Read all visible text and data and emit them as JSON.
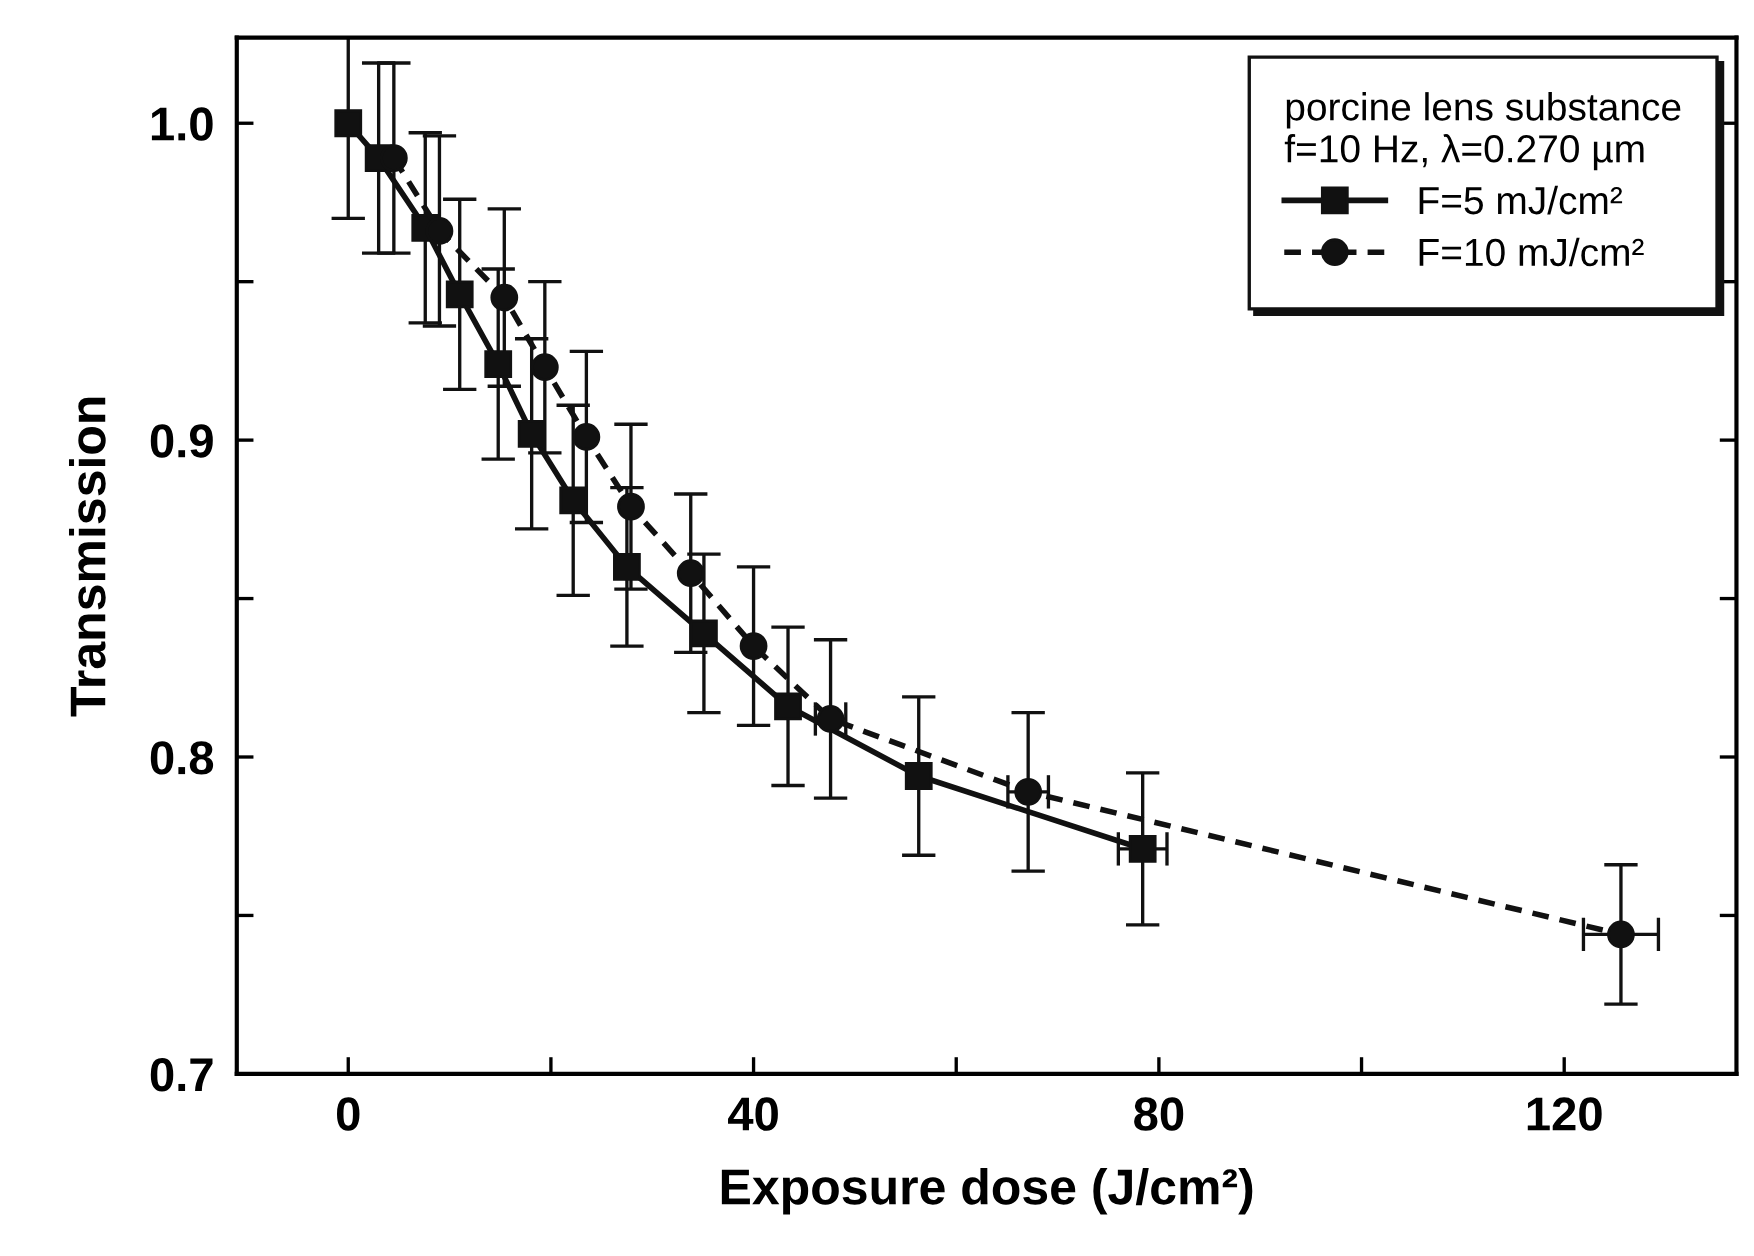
{
  "chart_data": {
    "type": "line",
    "xlabel": "Exposure dose (J/cm²)",
    "ylabel": "Transmission",
    "legend_title": "porcine lens substance\nf=10 Hz, λ=0.270 µm",
    "xlim": [
      -11,
      137
    ],
    "xticks": [
      0,
      {
        "value": 20,
        "label": null
      },
      40,
      {
        "value": 60,
        "label": null
      },
      80,
      {
        "value": 100,
        "label": null
      },
      120
    ],
    "ylim": [
      0.7,
      1.027
    ],
    "yticks": [
      0.7,
      {
        "value": 0.75,
        "label": null
      },
      0.8,
      {
        "value": 0.85,
        "label": null
      },
      0.9,
      {
        "value": 0.95,
        "label": null
      },
      {
        "value": 1.0,
        "label": "1.0"
      }
    ],
    "grid": false,
    "legend": "top right",
    "series": [
      {
        "name": "F=5 mJ/cm²",
        "color": "#111111",
        "marker": "square",
        "line_style": "solid",
        "x": [
          0,
          3,
          7.6,
          11.0,
          14.8,
          18.1,
          22.2,
          27.5,
          35.1,
          43.4,
          56.3,
          78.4
        ],
        "values": [
          1.0,
          0.989,
          0.967,
          0.946,
          0.924,
          0.902,
          0.881,
          0.86,
          0.839,
          0.816,
          0.794,
          0.771
        ],
        "errors": [
          0.03,
          0.03,
          0.03,
          0.03,
          0.03,
          0.03,
          0.03,
          0.025,
          0.025,
          0.025,
          0.025,
          0.024
        ],
        "xerrors": [
          null,
          null,
          null,
          null,
          null,
          null,
          null,
          null,
          null,
          null,
          null,
          2.4
        ]
      },
      {
        "name": "F=10 mJ/cm²",
        "color": "#111111",
        "marker": "circle",
        "line_style": "dashed",
        "x": [
          4.5,
          9.0,
          15.4,
          19.4,
          23.5,
          27.9,
          33.8,
          40.0,
          47.6,
          67.1,
          125.6
        ],
        "values": [
          0.989,
          0.966,
          0.945,
          0.923,
          0.901,
          0.879,
          0.858,
          0.835,
          0.812,
          0.789,
          0.744
        ],
        "errors": [
          0.03,
          0.03,
          0.028,
          0.027,
          0.027,
          0.026,
          0.025,
          0.025,
          0.025,
          0.025,
          0.022
        ],
        "xerrors": [
          null,
          null,
          null,
          null,
          null,
          null,
          null,
          null,
          1.5,
          2,
          3.7
        ]
      }
    ]
  }
}
